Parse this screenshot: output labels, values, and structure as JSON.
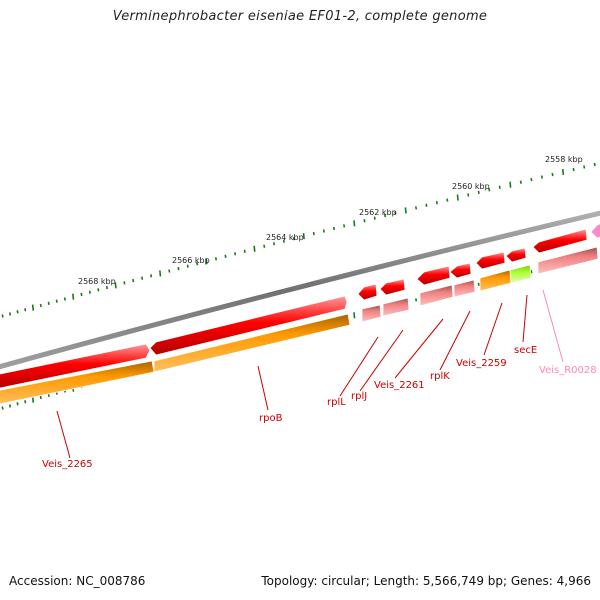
{
  "title": "Verminephrobacter eiseniae EF01-2, complete genome",
  "footer": {
    "accession": "Accession: NC_008786",
    "topology": "Topology: circular; Length: 5,566,749 bp; Genes: 4,966"
  },
  "scale_labels": [
    "2558 kbp",
    "2560 kbp",
    "2562 kbp",
    "2564 kbp",
    "2566 kbp",
    "2568 kbp"
  ],
  "gene_labels": [
    "Veis_2265",
    "rpoB",
    "rplL",
    "rplJ",
    "Veis_2261",
    "rplK",
    "Veis_2259",
    "secE",
    "Veis_R0028"
  ],
  "colors": {
    "cds": "#ff0000",
    "feature_orange": "#ff9900",
    "feature_pink": "#f08080",
    "feature_green": "#aaff33",
    "trna": "#ff88cc",
    "backbone": "#808080",
    "ticks": "#1a7a1a",
    "label_red": "#cc0000",
    "label_pink": "#ff88aa"
  }
}
